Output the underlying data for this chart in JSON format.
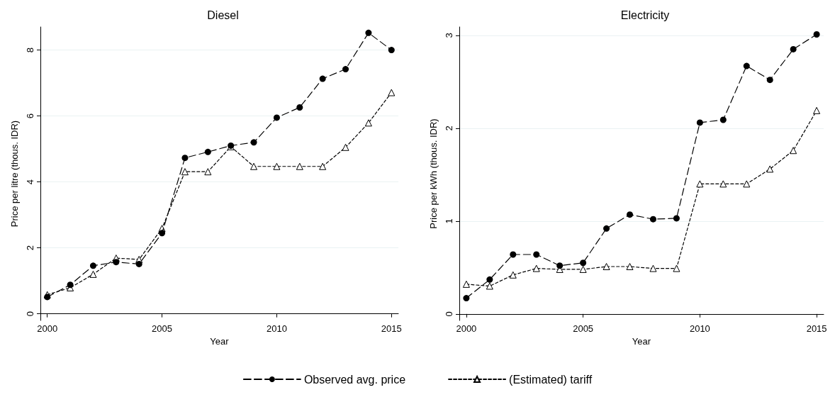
{
  "chart_data": [
    {
      "type": "line",
      "title": "Diesel",
      "xlabel": "Year",
      "ylabel": "Price per litre (thous. IDR)",
      "x": [
        2000,
        2001,
        2002,
        2003,
        2004,
        2005,
        2006,
        2007,
        2008,
        2009,
        2010,
        2011,
        2012,
        2013,
        2014,
        2015
      ],
      "xlim": [
        1999.7,
        2015.3
      ],
      "xticks": [
        2000,
        2005,
        2010,
        2015
      ],
      "ylim": [
        -0.2,
        8.7
      ],
      "yticks": [
        0,
        2,
        4,
        6,
        8
      ],
      "grid": "y",
      "legend": "bottom",
      "series": [
        {
          "name": "Observed avg. price",
          "color": "#000000",
          "marker": "circle",
          "line_style": "dashed",
          "values": [
            0.51,
            0.88,
            1.46,
            1.57,
            1.51,
            2.45,
            4.73,
            4.91,
            5.1,
            5.2,
            5.95,
            6.26,
            7.13,
            7.42,
            8.52,
            8.0
          ]
        },
        {
          "name": "(Estimated) tariff",
          "color": "#000000",
          "marker": "triangle",
          "line_style": "dotted",
          "values": [
            0.58,
            0.79,
            1.2,
            1.69,
            1.65,
            2.59,
            4.31,
            4.31,
            5.07,
            4.47,
            4.47,
            4.47,
            4.47,
            5.05,
            5.79,
            6.71
          ]
        }
      ]
    },
    {
      "type": "line",
      "title": "Electricity",
      "xlabel": "Year",
      "ylabel": "Price per kWh (thous. IDR)",
      "x": [
        2000,
        2001,
        2002,
        2003,
        2004,
        2005,
        2006,
        2007,
        2008,
        2009,
        2010,
        2011,
        2012,
        2013,
        2014,
        2015
      ],
      "xlim": [
        1999.7,
        2015.3
      ],
      "xticks": [
        2000,
        2005,
        2010,
        2015
      ],
      "ylim": [
        -0.07,
        3.09
      ],
      "yticks": [
        0,
        1,
        2,
        3
      ],
      "grid": "y",
      "series": [
        {
          "color": "#000000",
          "marker": "circle",
          "line_style": "dashed",
          "values": [
            0.17,
            0.37,
            0.64,
            0.64,
            0.52,
            0.55,
            0.92,
            1.07,
            1.02,
            1.03,
            2.06,
            2.09,
            2.67,
            2.52,
            2.85,
            3.01
          ]
        },
        {
          "color": "#000000",
          "marker": "triangle",
          "line_style": "dotted",
          "values": [
            0.32,
            0.3,
            0.42,
            0.49,
            0.48,
            0.48,
            0.51,
            0.51,
            0.49,
            0.49,
            1.4,
            1.4,
            1.4,
            1.56,
            1.76,
            2.19
          ]
        }
      ]
    }
  ]
}
